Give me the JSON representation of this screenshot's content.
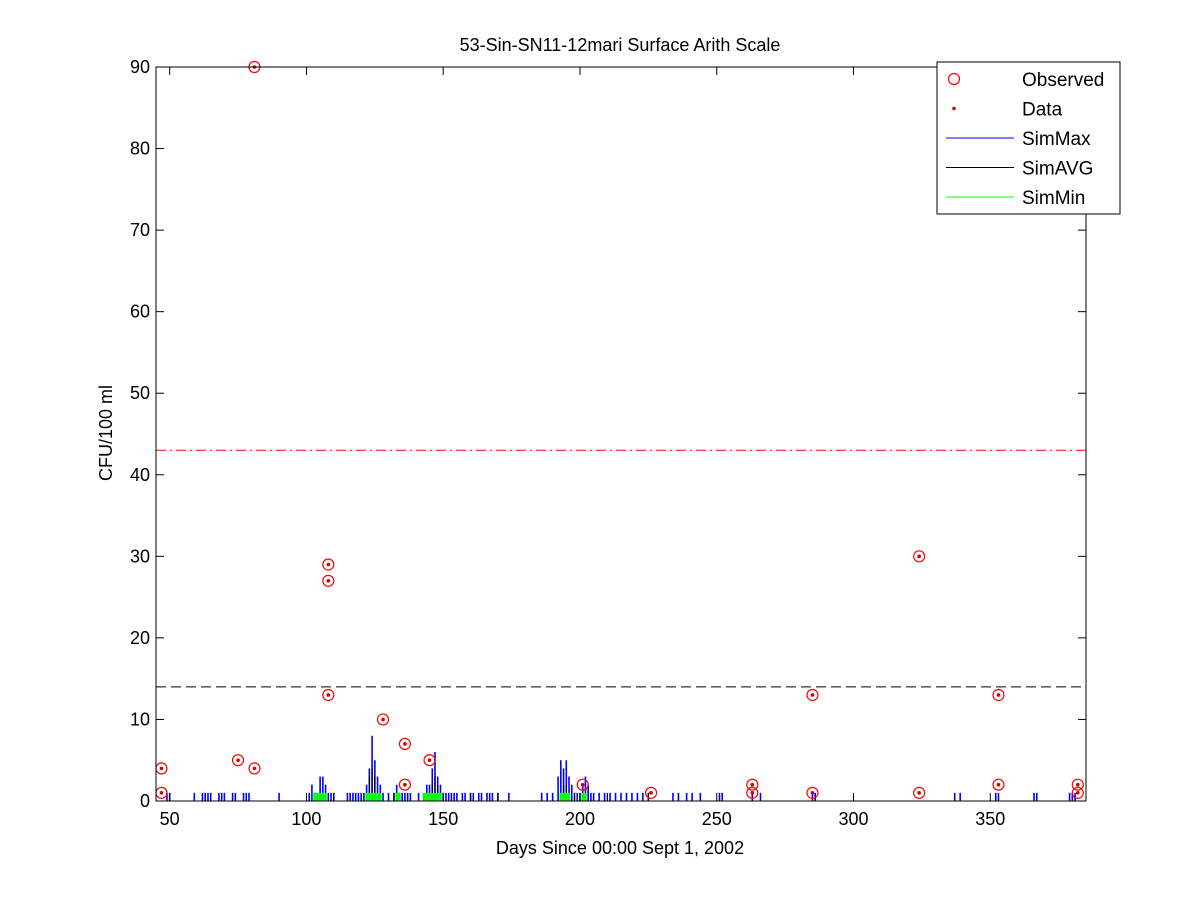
{
  "chart_data": {
    "type": "scatter",
    "title": "53-Sin-SN11-12mari Surface Arith Scale",
    "xlabel": "Days Since 00:00 Sept 1, 2002",
    "ylabel": "CFU/100 ml",
    "xlim": [
      45,
      385
    ],
    "ylim": [
      0,
      90
    ],
    "xticks": [
      50,
      100,
      150,
      200,
      250,
      300,
      350
    ],
    "yticks": [
      0,
      10,
      20,
      30,
      40,
      50,
      60,
      70,
      80,
      90
    ],
    "grid": false,
    "legend_position": "top-right",
    "colors": {
      "observed": "#ff0000",
      "data": "#cc0000",
      "simmax": "#0000ff",
      "simavg": "#000000",
      "simmin": "#00ff00",
      "ref_line_red": "#ff0000",
      "ref_line_black": "#000000"
    },
    "legend": [
      {
        "label": "Observed",
        "marker": "circle"
      },
      {
        "label": "Data",
        "marker": "dot"
      },
      {
        "label": "SimMax",
        "marker": "line"
      },
      {
        "label": "SimAVG",
        "marker": "line"
      },
      {
        "label": "SimMin",
        "marker": "line"
      }
    ],
    "reference_lines": [
      {
        "y": 43,
        "style": "dash-dot",
        "color": "#ff0000"
      },
      {
        "y": 14,
        "style": "dashed",
        "color": "#000000"
      }
    ],
    "observed_points": [
      {
        "x": 47,
        "y": 4
      },
      {
        "x": 47,
        "y": 1
      },
      {
        "x": 75,
        "y": 5
      },
      {
        "x": 81,
        "y": 4
      },
      {
        "x": 81,
        "y": 90
      },
      {
        "x": 108,
        "y": 29
      },
      {
        "x": 108,
        "y": 27
      },
      {
        "x": 108,
        "y": 13
      },
      {
        "x": 128,
        "y": 10
      },
      {
        "x": 136,
        "y": 7
      },
      {
        "x": 136,
        "y": 2
      },
      {
        "x": 145,
        "y": 5
      },
      {
        "x": 201,
        "y": 2
      },
      {
        "x": 226,
        "y": 1
      },
      {
        "x": 263,
        "y": 2
      },
      {
        "x": 263,
        "y": 1
      },
      {
        "x": 285,
        "y": 13
      },
      {
        "x": 285,
        "y": 1
      },
      {
        "x": 324,
        "y": 30
      },
      {
        "x": 324,
        "y": 1
      },
      {
        "x": 353,
        "y": 13
      },
      {
        "x": 353,
        "y": 2
      },
      {
        "x": 382,
        "y": 2
      },
      {
        "x": 382,
        "y": 1
      }
    ],
    "simmax_spikes": [
      {
        "x": 49,
        "y": 1
      },
      {
        "x": 50,
        "y": 1
      },
      {
        "x": 59,
        "y": 1
      },
      {
        "x": 62,
        "y": 1
      },
      {
        "x": 63,
        "y": 1
      },
      {
        "x": 64,
        "y": 1
      },
      {
        "x": 65,
        "y": 1
      },
      {
        "x": 68,
        "y": 1
      },
      {
        "x": 69,
        "y": 1
      },
      {
        "x": 70,
        "y": 1
      },
      {
        "x": 73,
        "y": 1
      },
      {
        "x": 74,
        "y": 1
      },
      {
        "x": 77,
        "y": 1
      },
      {
        "x": 78,
        "y": 1
      },
      {
        "x": 79,
        "y": 1
      },
      {
        "x": 90,
        "y": 1
      },
      {
        "x": 101,
        "y": 1
      },
      {
        "x": 102,
        "y": 2
      },
      {
        "x": 103,
        "y": 1
      },
      {
        "x": 104,
        "y": 1
      },
      {
        "x": 105,
        "y": 3
      },
      {
        "x": 106,
        "y": 3
      },
      {
        "x": 107,
        "y": 2
      },
      {
        "x": 108,
        "y": 1
      },
      {
        "x": 109,
        "y": 1
      },
      {
        "x": 110,
        "y": 1
      },
      {
        "x": 115,
        "y": 1
      },
      {
        "x": 116,
        "y": 1
      },
      {
        "x": 117,
        "y": 1
      },
      {
        "x": 118,
        "y": 1
      },
      {
        "x": 119,
        "y": 1
      },
      {
        "x": 120,
        "y": 1
      },
      {
        "x": 121,
        "y": 1
      },
      {
        "x": 122,
        "y": 2
      },
      {
        "x": 123,
        "y": 4
      },
      {
        "x": 124,
        "y": 8
      },
      {
        "x": 125,
        "y": 5
      },
      {
        "x": 126,
        "y": 3
      },
      {
        "x": 127,
        "y": 2
      },
      {
        "x": 128,
        "y": 1
      },
      {
        "x": 130,
        "y": 1
      },
      {
        "x": 132,
        "y": 1
      },
      {
        "x": 133,
        "y": 2
      },
      {
        "x": 134,
        "y": 1
      },
      {
        "x": 135,
        "y": 1
      },
      {
        "x": 136,
        "y": 1
      },
      {
        "x": 137,
        "y": 1
      },
      {
        "x": 138,
        "y": 1
      },
      {
        "x": 141,
        "y": 1
      },
      {
        "x": 143,
        "y": 1
      },
      {
        "x": 144,
        "y": 2
      },
      {
        "x": 145,
        "y": 2
      },
      {
        "x": 146,
        "y": 4
      },
      {
        "x": 147,
        "y": 6
      },
      {
        "x": 148,
        "y": 3
      },
      {
        "x": 149,
        "y": 2
      },
      {
        "x": 150,
        "y": 1
      },
      {
        "x": 151,
        "y": 1
      },
      {
        "x": 152,
        "y": 1
      },
      {
        "x": 153,
        "y": 1
      },
      {
        "x": 154,
        "y": 1
      },
      {
        "x": 155,
        "y": 1
      },
      {
        "x": 157,
        "y": 1
      },
      {
        "x": 158,
        "y": 1
      },
      {
        "x": 160,
        "y": 1
      },
      {
        "x": 161,
        "y": 1
      },
      {
        "x": 163,
        "y": 1
      },
      {
        "x": 164,
        "y": 1
      },
      {
        "x": 166,
        "y": 1
      },
      {
        "x": 167,
        "y": 1
      },
      {
        "x": 168,
        "y": 1
      },
      {
        "x": 170,
        "y": 1
      },
      {
        "x": 174,
        "y": 1
      },
      {
        "x": 186,
        "y": 1
      },
      {
        "x": 188,
        "y": 1
      },
      {
        "x": 190,
        "y": 1
      },
      {
        "x": 192,
        "y": 3
      },
      {
        "x": 193,
        "y": 5
      },
      {
        "x": 194,
        "y": 4
      },
      {
        "x": 195,
        "y": 5
      },
      {
        "x": 196,
        "y": 3
      },
      {
        "x": 197,
        "y": 2
      },
      {
        "x": 198,
        "y": 1
      },
      {
        "x": 199,
        "y": 1
      },
      {
        "x": 200,
        "y": 1
      },
      {
        "x": 201,
        "y": 2
      },
      {
        "x": 202,
        "y": 3
      },
      {
        "x": 203,
        "y": 2
      },
      {
        "x": 204,
        "y": 1
      },
      {
        "x": 205,
        "y": 1
      },
      {
        "x": 207,
        "y": 1
      },
      {
        "x": 209,
        "y": 1
      },
      {
        "x": 211,
        "y": 1
      },
      {
        "x": 213,
        "y": 1
      },
      {
        "x": 215,
        "y": 1
      },
      {
        "x": 217,
        "y": 1
      },
      {
        "x": 219,
        "y": 1
      },
      {
        "x": 221,
        "y": 1
      },
      {
        "x": 223,
        "y": 1
      },
      {
        "x": 225,
        "y": 1
      },
      {
        "x": 234,
        "y": 1
      },
      {
        "x": 236,
        "y": 1
      },
      {
        "x": 239,
        "y": 1
      },
      {
        "x": 241,
        "y": 1
      },
      {
        "x": 244,
        "y": 1
      },
      {
        "x": 251,
        "y": 1
      },
      {
        "x": 252,
        "y": 1
      },
      {
        "x": 263,
        "y": 1
      },
      {
        "x": 266,
        "y": 1
      },
      {
        "x": 285,
        "y": 1
      },
      {
        "x": 286,
        "y": 1
      },
      {
        "x": 337,
        "y": 1
      },
      {
        "x": 339,
        "y": 1
      },
      {
        "x": 352,
        "y": 1
      },
      {
        "x": 353,
        "y": 1
      },
      {
        "x": 366,
        "y": 1
      },
      {
        "x": 367,
        "y": 1
      },
      {
        "x": 379,
        "y": 1
      },
      {
        "x": 380,
        "y": 1
      },
      {
        "x": 381,
        "y": 1
      }
    ],
    "simavg_spikes": [
      {
        "x": 103,
        "y": 1
      },
      {
        "x": 110,
        "y": 1
      },
      {
        "x": 123,
        "y": 3
      },
      {
        "x": 124,
        "y": 4
      },
      {
        "x": 125,
        "y": 3
      },
      {
        "x": 132,
        "y": 1
      },
      {
        "x": 134,
        "y": 1
      },
      {
        "x": 146,
        "y": 2
      },
      {
        "x": 147,
        "y": 3
      },
      {
        "x": 148,
        "y": 2
      },
      {
        "x": 160,
        "y": 1
      },
      {
        "x": 170,
        "y": 1
      },
      {
        "x": 194,
        "y": 2
      },
      {
        "x": 195,
        "y": 2
      },
      {
        "x": 198,
        "y": 1
      },
      {
        "x": 210,
        "y": 1
      },
      {
        "x": 225,
        "y": 1
      }
    ],
    "simmin_spikes": [
      {
        "x": 103,
        "y": 1
      },
      {
        "x": 104,
        "y": 1
      },
      {
        "x": 105,
        "y": 1
      },
      {
        "x": 106,
        "y": 1
      },
      {
        "x": 107,
        "y": 1
      },
      {
        "x": 122,
        "y": 1
      },
      {
        "x": 123,
        "y": 1
      },
      {
        "x": 124,
        "y": 1
      },
      {
        "x": 125,
        "y": 1
      },
      {
        "x": 126,
        "y": 1
      },
      {
        "x": 127,
        "y": 1
      },
      {
        "x": 133,
        "y": 1
      },
      {
        "x": 134,
        "y": 1
      },
      {
        "x": 143,
        "y": 1
      },
      {
        "x": 144,
        "y": 1
      },
      {
        "x": 145,
        "y": 1
      },
      {
        "x": 146,
        "y": 1
      },
      {
        "x": 147,
        "y": 1
      },
      {
        "x": 148,
        "y": 1
      },
      {
        "x": 149,
        "y": 1
      },
      {
        "x": 193,
        "y": 1
      },
      {
        "x": 194,
        "y": 1
      },
      {
        "x": 195,
        "y": 1
      },
      {
        "x": 196,
        "y": 1
      },
      {
        "x": 201,
        "y": 1
      },
      {
        "x": 202,
        "y": 1
      }
    ]
  }
}
